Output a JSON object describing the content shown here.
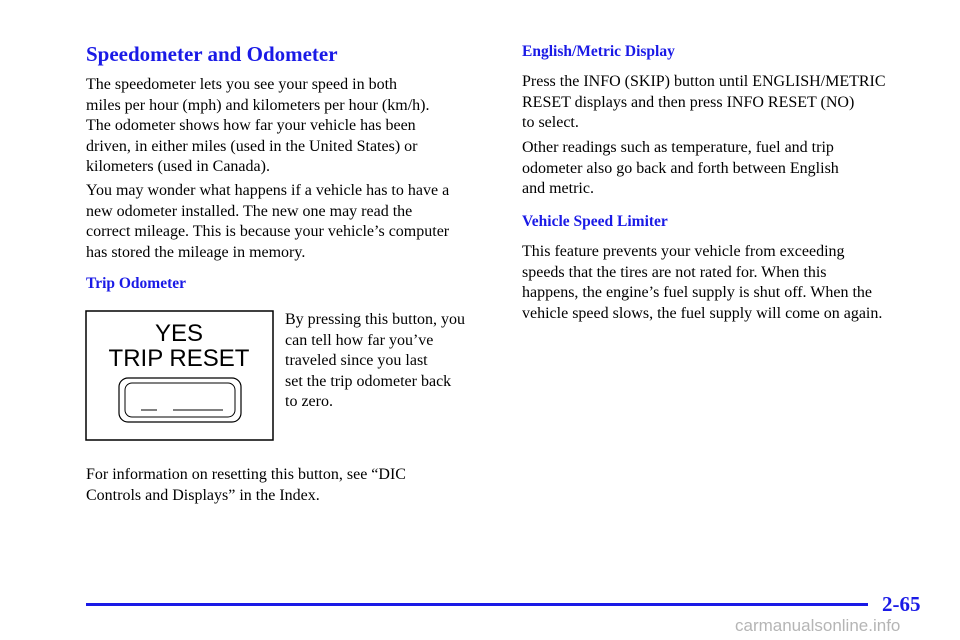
{
  "left": {
    "title": "Speedometer and Odometer",
    "paragraphs": [
      [
        "The speedometer lets you see your speed in both",
        "miles per hour (mph) and kilometers per hour (km/h).",
        "The odometer shows how far your vehicle has been",
        "driven, in either miles (used in the United States) or",
        "kilometers (used in Canada)."
      ],
      [
        "You may wonder what happens if a vehicle has to have a",
        "new odometer installed. The new one may read the",
        "correct mileage. This is because your vehicle’s computer",
        "has stored the mileage in memory."
      ]
    ],
    "trip_heading": "Trip Odometer",
    "figure": {
      "line1": "YES",
      "line2": "TRIP RESET"
    },
    "figure_text": [
      "By pressing this button, you",
      "can tell how far you’ve",
      "traveled since you last",
      "set the trip odometer back",
      "to zero."
    ],
    "closing": [
      "For information on resetting this button, see “DIC",
      "Controls and Displays” in the Index."
    ]
  },
  "right": {
    "heading1": "English/Metric Display",
    "paragraphs1": [
      [
        "Press the INFO (SKIP) button until ENGLISH/METRIC",
        "RESET displays and then press INFO RESET (NO)",
        "to select."
      ],
      [
        "Other readings such as temperature, fuel and trip",
        "odometer also go back and forth between English",
        "and metric."
      ]
    ],
    "heading2": "Vehicle Speed Limiter",
    "paragraph2": [
      "This feature prevents your vehicle from exceeding",
      "speeds that the tires are not rated for. When this",
      "happens, the engine’s fuel supply is shut off. When the",
      "vehicle speed slows, the fuel supply will come on again."
    ]
  },
  "footer": {
    "page_number": "2-65",
    "watermark": "carmanualsonline.info"
  }
}
